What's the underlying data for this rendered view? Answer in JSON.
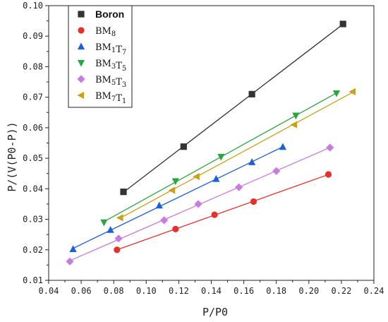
{
  "chart_data": {
    "type": "scatter",
    "xlabel": "P/P0",
    "ylabel": "P/(V(P0-P))",
    "xlim": [
      0.04,
      0.24
    ],
    "ylim": [
      0.01,
      0.1
    ],
    "xticks": [
      "0.04",
      "0.06",
      "0.08",
      "0.10",
      "0.12",
      "0.14",
      "0.16",
      "0.18",
      "0.20",
      "0.22",
      "0.24"
    ],
    "yticks": [
      "0.01",
      "0.02",
      "0.03",
      "0.04",
      "0.05",
      "0.06",
      "0.07",
      "0.08",
      "0.09",
      "0.10"
    ],
    "grid": false,
    "legend_position": "top-left",
    "fit_lines": true,
    "series": [
      {
        "name": "Boron",
        "marker": "square",
        "color": "#333333",
        "x": [
          0.086,
          0.123,
          0.165,
          0.221
        ],
        "y": [
          0.039,
          0.0538,
          0.071,
          0.094
        ]
      },
      {
        "name": "BM8",
        "marker": "circle",
        "color": "#e8302a",
        "x": [
          0.082,
          0.118,
          0.142,
          0.166,
          0.212
        ],
        "y": [
          0.02,
          0.0268,
          0.0315,
          0.0358,
          0.0447
        ]
      },
      {
        "name": "BM1T7",
        "marker": "triangle-up",
        "color": "#1f5fd6",
        "x": [
          0.055,
          0.078,
          0.108,
          0.143,
          0.165,
          0.184
        ],
        "y": [
          0.0202,
          0.0265,
          0.0345,
          0.0432,
          0.0487,
          0.0537
        ]
      },
      {
        "name": "BM3T5",
        "marker": "triangle-down",
        "color": "#2ca440",
        "x": [
          0.074,
          0.118,
          0.146,
          0.192,
          0.217
        ],
        "y": [
          0.029,
          0.0425,
          0.0505,
          0.064,
          0.0713
        ]
      },
      {
        "name": "BM5T3",
        "marker": "diamond",
        "color": "#c77de0",
        "x": [
          0.053,
          0.083,
          0.111,
          0.132,
          0.157,
          0.18,
          0.213
        ],
        "y": [
          0.0162,
          0.0237,
          0.0297,
          0.035,
          0.0405,
          0.0458,
          0.0535
        ]
      },
      {
        "name": "BM7T1",
        "marker": "triangle-left",
        "color": "#c9a21a",
        "x": [
          0.084,
          0.116,
          0.131,
          0.191,
          0.227
        ],
        "y": [
          0.0305,
          0.0395,
          0.044,
          0.061,
          0.0718
        ]
      }
    ]
  }
}
